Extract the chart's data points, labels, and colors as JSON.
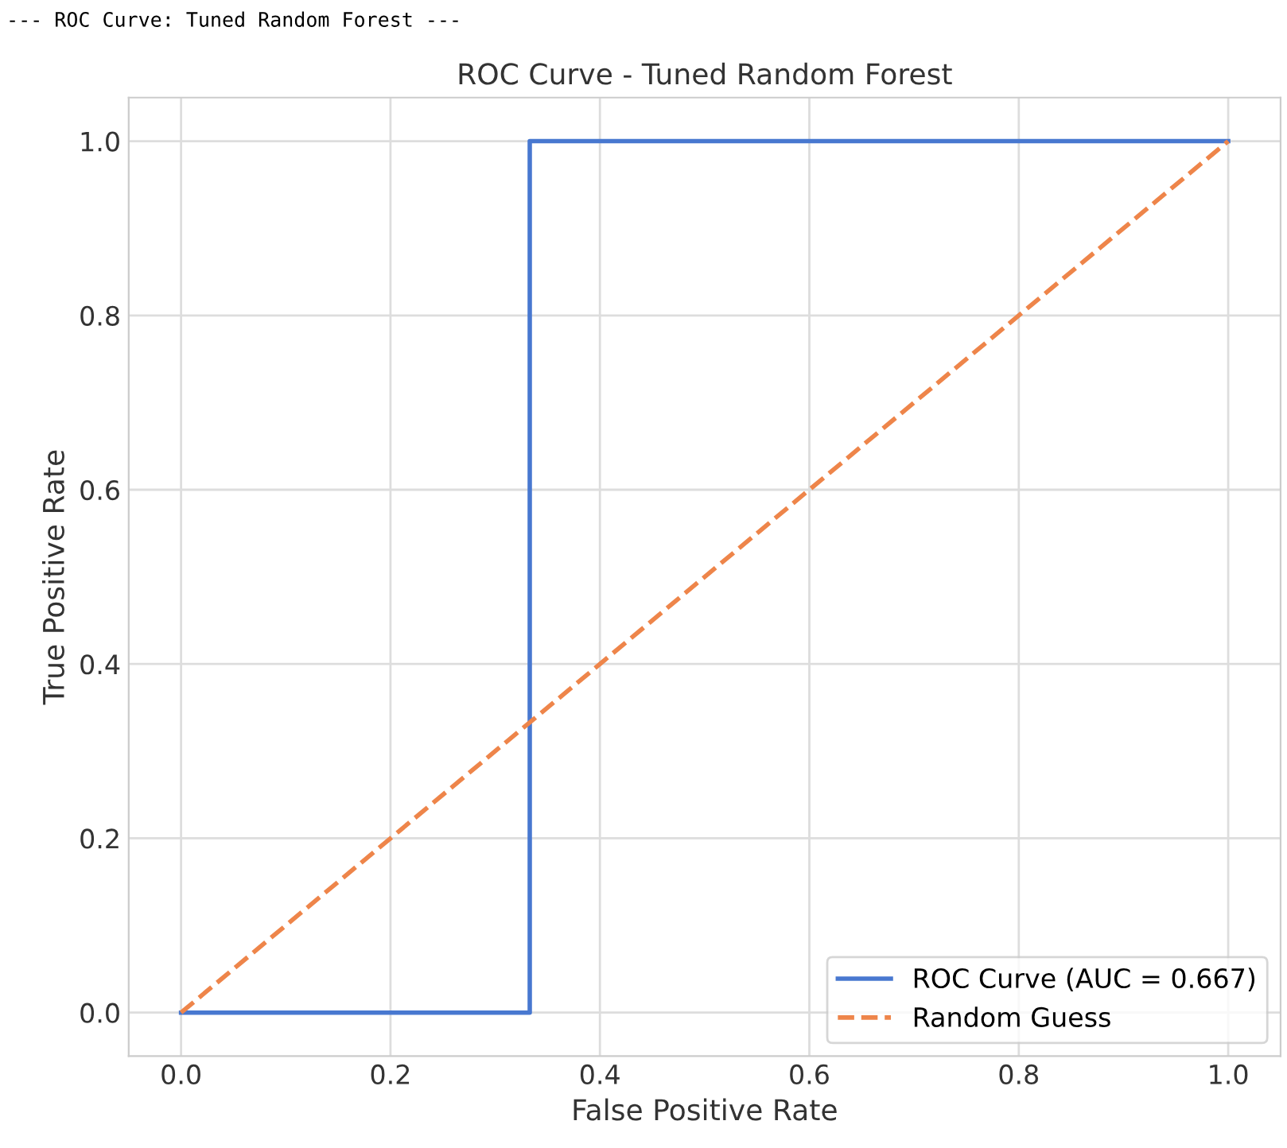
{
  "chart_data": {
    "type": "line",
    "title": "ROC Curve - Tuned Random Forest",
    "xlabel": "False Positive Rate",
    "ylabel": "True Positive Rate",
    "annotations": [
      "--- ROC Curve: Tuned Random Forest ---"
    ],
    "series": [
      {
        "name": "ROC Curve (AUC = 0.667)",
        "color": "#4878d0",
        "x": [
          0,
          0.333,
          0.333,
          1
        ],
        "values": [
          0,
          0,
          1,
          1
        ],
        "line_style": "solid"
      },
      {
        "name": "Random Guess",
        "color": "#ee854a",
        "x": [
          0,
          1
        ],
        "values": [
          0,
          1
        ],
        "line_style": "dashed"
      }
    ],
    "xlim": [
      -0.05,
      1.05
    ],
    "ylim": [
      -0.05,
      1.05
    ],
    "xticks": [
      {
        "value": 0,
        "label": "0.0"
      },
      0.2,
      0.4,
      0.6,
      0.8,
      {
        "value": 1,
        "label": "1.0"
      }
    ],
    "yticks": [
      {
        "value": 0,
        "label": "0.0"
      },
      0.2,
      0.4,
      0.6,
      0.8,
      {
        "value": 1,
        "label": "1.0"
      }
    ],
    "grid": true,
    "legend": "bottom right",
    "marker": "none"
  }
}
